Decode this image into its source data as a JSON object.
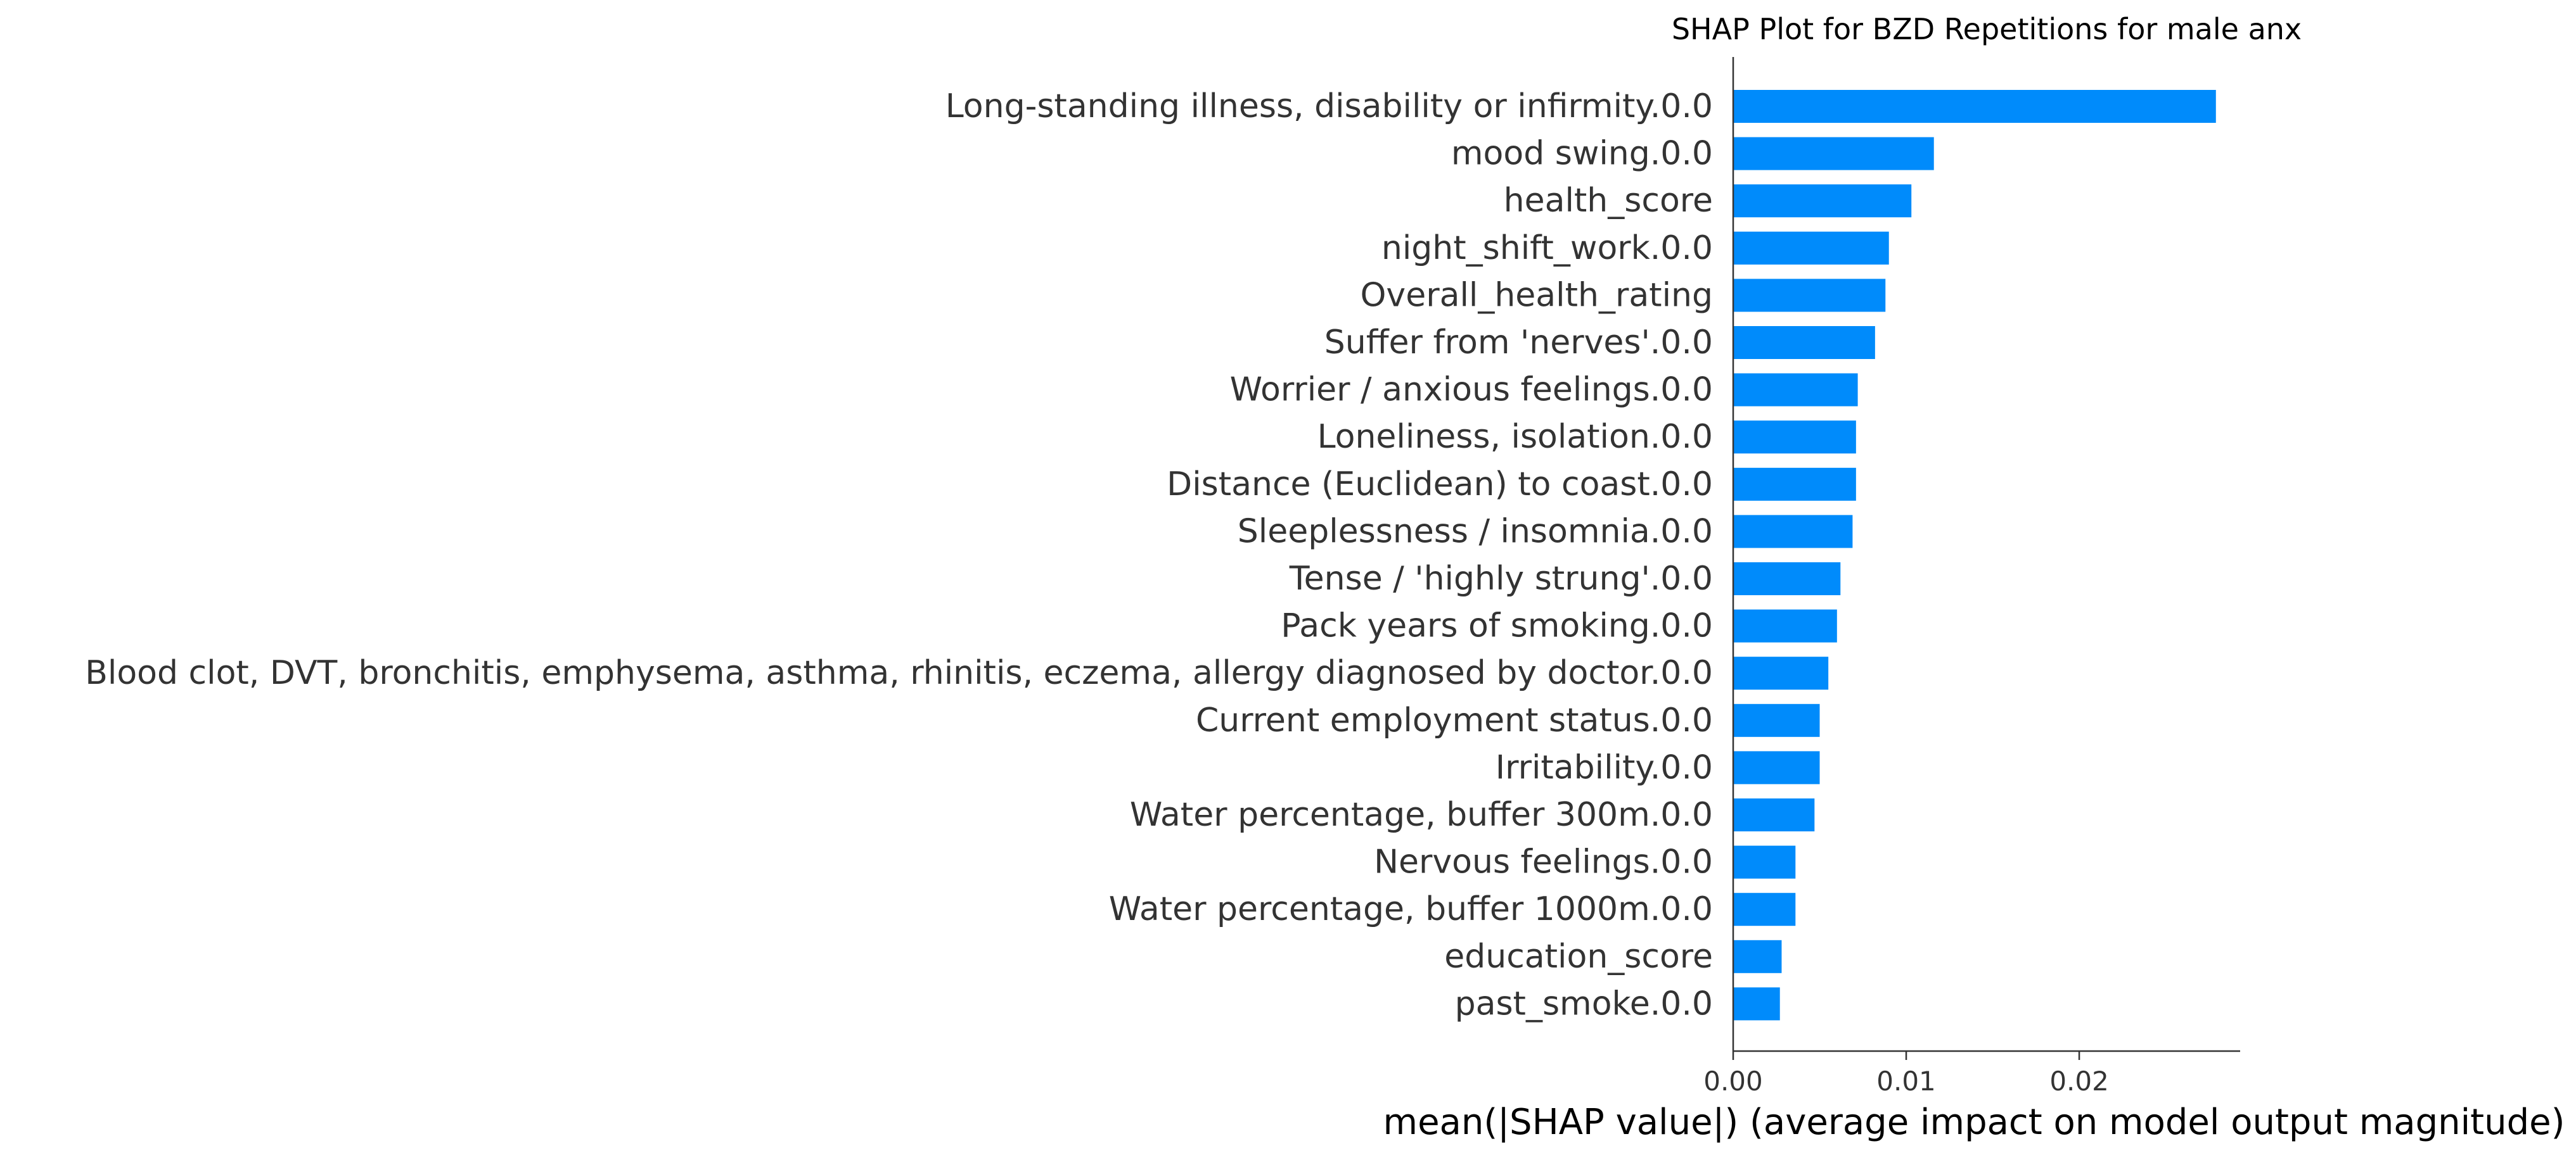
{
  "chart_data": {
    "type": "bar",
    "orientation": "horizontal",
    "title": "SHAP Plot for BZD Repetitions for male anx",
    "xlabel": "mean(|SHAP value|) (average impact on model output magnitude)",
    "ylabel": "",
    "xlim": [
      0.0,
      0.0293
    ],
    "xticks": [
      0.0,
      0.01,
      0.02
    ],
    "xtick_labels": [
      "0.00",
      "0.01",
      "0.02"
    ],
    "grid": false,
    "bar_color": "#008bfb",
    "text_color": "#333333",
    "categories": [
      "Long-standing illness, disability or infirmity.0.0",
      "mood swing.0.0",
      "health_score",
      "night_shift_work.0.0",
      "Overall_health_rating",
      "Suffer from 'nerves'.0.0",
      "Worrier / anxious feelings.0.0",
      "Loneliness, isolation.0.0",
      "Distance (Euclidean) to coast.0.0",
      "Sleeplessness / insomnia.0.0",
      "Tense / 'highly strung'.0.0",
      "Pack years of smoking.0.0",
      "Blood clot, DVT, bronchitis, emphysema, asthma, rhinitis, eczema, allergy diagnosed by doctor.0.0",
      "Current employment status.0.0",
      "Irritability.0.0",
      "Water percentage, buffer 300m.0.0",
      "Nervous feelings.0.0",
      "Water percentage, buffer 1000m.0.0",
      "education_score",
      "past_smoke.0.0"
    ],
    "values": [
      0.0279,
      0.0116,
      0.0103,
      0.009,
      0.0088,
      0.0082,
      0.0072,
      0.0071,
      0.0071,
      0.0069,
      0.0062,
      0.006,
      0.0055,
      0.005,
      0.005,
      0.0047,
      0.0036,
      0.0036,
      0.0028,
      0.0027
    ]
  }
}
